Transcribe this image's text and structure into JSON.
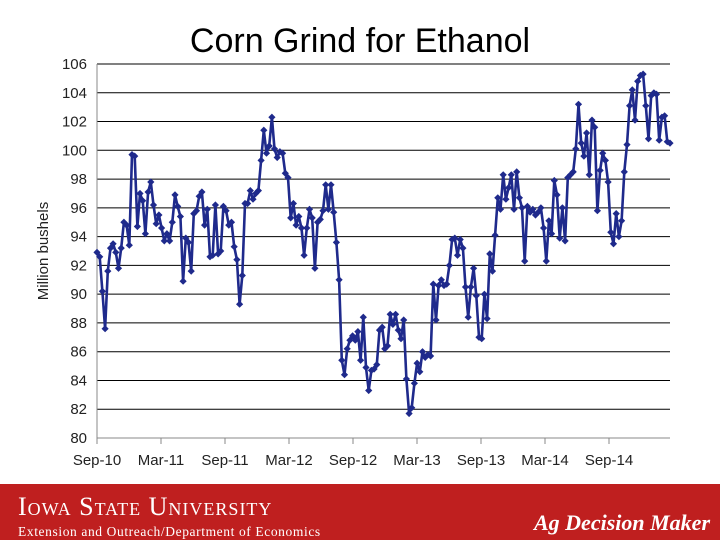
{
  "chart_data": {
    "type": "line",
    "title": "Corn Grind for Ethanol",
    "ylabel": "Million bushels",
    "ylim": [
      80,
      106
    ],
    "yticks": [
      80,
      82,
      84,
      86,
      88,
      90,
      92,
      94,
      96,
      98,
      100,
      102,
      104,
      106
    ],
    "xtick_labels": [
      "Sep-10",
      "Mar-11",
      "Sep-11",
      "Mar-12",
      "Sep-12",
      "Mar-13",
      "Sep-13",
      "Mar-14",
      "Sep-14"
    ],
    "grid": "horizontal",
    "series": [
      {
        "color": "#1f2a8c",
        "marker": "diamond",
        "values": [
          92.9,
          92.6,
          90.2,
          87.6,
          91.6,
          93.2,
          93.5,
          92.9,
          91.8,
          93.2,
          95.0,
          94.8,
          93.4,
          99.7,
          99.6,
          94.7,
          97.0,
          96.5,
          94.2,
          97.1,
          97.8,
          96.2,
          94.9,
          95.5,
          94.6,
          93.7,
          94.2,
          93.7,
          95.0,
          96.9,
          96.1,
          95.4,
          90.9,
          93.9,
          93.6,
          91.6,
          95.6,
          95.8,
          96.8,
          97.1,
          94.8,
          95.9,
          92.6,
          92.7,
          96.2,
          92.8,
          93.0,
          96.1,
          95.8,
          94.8,
          95.0,
          93.3,
          92.4,
          89.3,
          91.3,
          96.3,
          96.3,
          97.2,
          96.6,
          97.0,
          97.2,
          99.3,
          101.4,
          99.8,
          100.3,
          102.3,
          100.1,
          99.5,
          99.9,
          99.8,
          98.4,
          98.1,
          95.3,
          96.3,
          94.8,
          95.4,
          94.6,
          92.7,
          94.6,
          95.9,
          95.3,
          91.8,
          95.0,
          95.2,
          95.8,
          97.6,
          95.9,
          97.6,
          95.7,
          93.6,
          91.0,
          85.4,
          84.4,
          86.2,
          86.8,
          87.1,
          86.8,
          87.4,
          85.4,
          88.4,
          84.9,
          83.3,
          84.7,
          84.8,
          85.1,
          87.5,
          87.7,
          86.2,
          86.4,
          88.6,
          87.9,
          88.6,
          87.5,
          86.9,
          88.2,
          84.1,
          81.7,
          82.1,
          83.8,
          85.2,
          84.6,
          86.0,
          85.6,
          85.8,
          85.7,
          90.7,
          88.2,
          90.6,
          91.0,
          90.6,
          90.7,
          92.0,
          93.8,
          93.9,
          92.7,
          93.8,
          93.2,
          90.5,
          88.4,
          90.5,
          91.8,
          89.9,
          87.0,
          86.9,
          90.0,
          88.3,
          92.8,
          91.6,
          94.1,
          96.7,
          95.9,
          98.3,
          96.6,
          97.4,
          98.3,
          95.9,
          98.5,
          96.7,
          96.0,
          92.3,
          96.1,
          95.7,
          95.9,
          95.5,
          95.7,
          96.0,
          94.6,
          92.3,
          95.1,
          94.2,
          97.9,
          96.9,
          93.9,
          96.0,
          93.7,
          98.1,
          98.3,
          98.5,
          100.1,
          103.2,
          100.5,
          99.6,
          101.2,
          98.3,
          102.1,
          101.6,
          95.8,
          98.6,
          99.8,
          99.3,
          97.8,
          94.3,
          93.5,
          95.6,
          94.0,
          95.1,
          98.5,
          100.4,
          103.1,
          104.2,
          102.1,
          104.8,
          105.2,
          105.3,
          103.1,
          100.8,
          103.8,
          104.0,
          103.9,
          100.7,
          102.3,
          102.4,
          100.6,
          100.5
        ]
      }
    ]
  },
  "footer": {
    "university": "Iowa State University",
    "extension": "Extension and Outreach/Department of Economics",
    "brand": "Ag Decision Maker",
    "color": "#bf1f1f"
  }
}
